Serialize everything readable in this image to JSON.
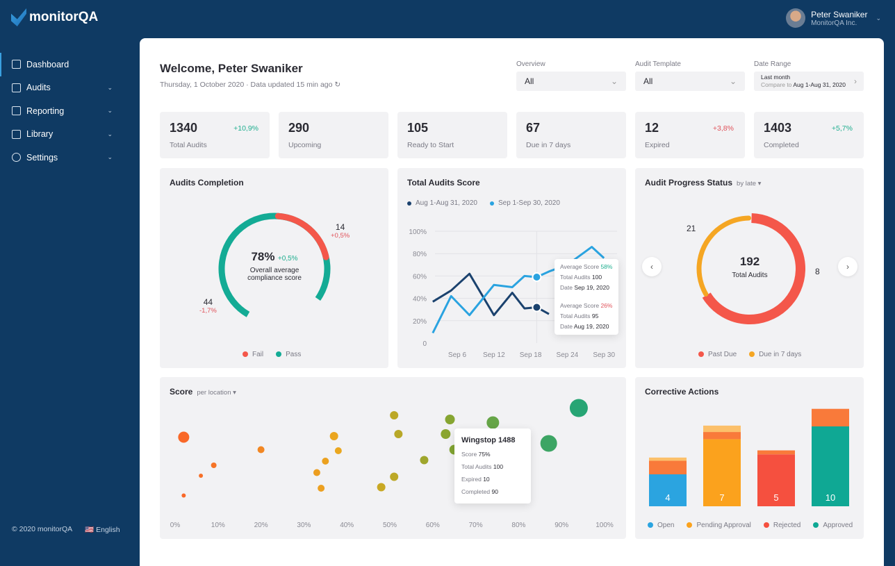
{
  "app": {
    "name": "monitorQA"
  },
  "user": {
    "name": "Peter Swaniker",
    "company": "MonitorQA Inc."
  },
  "sidebar": {
    "items": [
      {
        "label": "Dashboard",
        "icon": "grid-icon"
      },
      {
        "label": "Audits",
        "icon": "audit-icon"
      },
      {
        "label": "Reporting",
        "icon": "report-icon"
      },
      {
        "label": "Library",
        "icon": "folder-icon"
      },
      {
        "label": "Settings",
        "icon": "gear-icon"
      }
    ],
    "footer": {
      "copyright": "© 2020 monitorQA",
      "language": "English"
    }
  },
  "header": {
    "title": "Welcome, Peter Swaniker",
    "subtitle": "Thursday, 1 October 2020 · Data updated 15 min ago"
  },
  "filters": {
    "overview": {
      "label": "Overview",
      "value": "All"
    },
    "template": {
      "label": "Audit Template",
      "value": "All"
    },
    "date": {
      "label": "Date Range",
      "value": "Last month",
      "compare_prefix": "Compare to",
      "compare": "Aug 1-Aug 31, 2020"
    }
  },
  "stats": [
    {
      "value": "1340",
      "label": "Total Audits",
      "delta": "+10,9%",
      "color": "#1fae8f"
    },
    {
      "value": "290",
      "label": "Upcoming",
      "delta": ""
    },
    {
      "value": "105",
      "label": "Ready to Start",
      "delta": ""
    },
    {
      "value": "67",
      "label": "Due in 7 days",
      "delta": ""
    },
    {
      "value": "12",
      "label": "Expired",
      "delta": "+3,8%",
      "color": "#e0525a"
    },
    {
      "value": "1403",
      "label": "Completed",
      "delta": "+5,7%",
      "color": "#1fae8f"
    }
  ],
  "completion": {
    "title": "Audits Completion",
    "percent": "78%",
    "percent_delta": "+0,5%",
    "caption": "Overall average compliance score",
    "fail": {
      "value": "14",
      "delta": "+0,5%"
    },
    "pass": {
      "value": "44",
      "delta": "-1,7%"
    },
    "legend": [
      "Fail",
      "Pass"
    ],
    "colors": {
      "fail": "#f4574a",
      "pass": "#14ab95"
    },
    "pass_fraction": 0.78
  },
  "score_chart": {
    "title": "Total Audits Score",
    "legend": [
      "Aug 1-Aug 31, 2020",
      "Sep 1-Sep 30, 2020"
    ],
    "chart_data": {
      "type": "line",
      "yticks": [
        "100%",
        "80%",
        "60%",
        "40%",
        "20%",
        "0"
      ],
      "xticks": [
        "Sep 6",
        "Sep 12",
        "Sep 18",
        "Sep 24",
        "Sep 30"
      ],
      "ylim": [
        0,
        100
      ],
      "series": [
        {
          "name": "Aug 1-Aug 31, 2020",
          "color": "#1b426e",
          "x": [
            2,
            5,
            8,
            12,
            15,
            17,
            19,
            21
          ],
          "y": [
            37,
            47,
            62,
            25,
            45,
            31,
            32,
            26
          ]
        },
        {
          "name": "Sep 1-Sep 30, 2020",
          "color": "#2aa3e0",
          "x": [
            2,
            5,
            8,
            12,
            15,
            17,
            19,
            21,
            24,
            28,
            30
          ],
          "y": [
            9,
            42,
            25,
            52,
            50,
            60,
            59,
            64,
            70,
            86,
            76
          ]
        }
      ]
    },
    "tooltip": [
      {
        "k1": "Average Score",
        "v1": "58%",
        "k2": "Total Audits",
        "v2": "100",
        "k3": "Date",
        "v3": "Sep 19, 2020",
        "color": "#1fae8f"
      },
      {
        "k1": "Average Score",
        "v1": "26%",
        "k2": "Total Audits",
        "v2": "95",
        "k3": "Date",
        "v3": "Aug 19, 2020",
        "color": "#e0525a"
      }
    ]
  },
  "progress": {
    "title": "Audit Progress Status",
    "filter": "by late",
    "total": "192",
    "total_label": "Total Audits",
    "left_value": "21",
    "right_value": "8",
    "legend": [
      "Past Due",
      "Due in 7 days"
    ],
    "colors": {
      "past": "#f4574a",
      "due": "#f5a623"
    },
    "due_fraction": 0.33
  },
  "scatter": {
    "title": "Score",
    "filter": "per location",
    "chart_data": {
      "type": "scatter",
      "xticks": [
        "0%",
        "10%",
        "20%",
        "30%",
        "40%",
        "50%",
        "60%",
        "70%",
        "80%",
        "90%",
        "100%"
      ],
      "xlim": [
        0,
        100
      ],
      "points": [
        [
          2,
          67,
          8
        ],
        [
          6,
          30,
          3
        ],
        [
          9,
          40,
          4
        ],
        [
          2,
          11,
          3
        ],
        [
          20,
          55,
          5
        ],
        [
          37,
          68,
          6
        ],
        [
          38,
          54,
          5
        ],
        [
          35,
          44,
          5
        ],
        [
          33,
          33,
          5
        ],
        [
          34,
          18,
          5
        ],
        [
          51,
          88,
          6
        ],
        [
          52,
          70,
          6
        ],
        [
          51,
          29,
          6
        ],
        [
          48,
          19,
          6
        ],
        [
          58,
          45,
          6
        ],
        [
          64,
          84,
          7
        ],
        [
          63,
          70,
          7
        ],
        [
          65,
          55,
          7
        ],
        [
          74,
          81,
          9
        ],
        [
          87,
          61,
          12
        ],
        [
          94,
          95,
          13
        ]
      ]
    },
    "tooltip": {
      "title": "Wingstop 1488",
      "rows": [
        [
          "Score",
          "75%"
        ],
        [
          "Total Audits",
          "100"
        ],
        [
          "Expired",
          "10"
        ],
        [
          "Completed",
          "90"
        ]
      ]
    }
  },
  "corrective": {
    "title": "Corrective Actions",
    "chart_data": {
      "type": "bar",
      "categories": [
        "Open",
        "Pending Approval",
        "Rejected",
        "Approved"
      ],
      "values": [
        4,
        7,
        5,
        10
      ],
      "colors": [
        "#2ba4e0",
        "#fba21d",
        "#f5503f",
        "#0fa894"
      ],
      "stack_extra": [
        [
          [
            "#f97a3a",
            1.7
          ],
          [
            "#fcc06a",
            0.4
          ]
        ],
        [
          [
            "#f97a3a",
            0.9
          ],
          [
            "#fcc06a",
            0.8
          ]
        ],
        [
          [
            "#f97a3a",
            0.5
          ]
        ],
        [
          [
            "#f97a3a",
            2.2
          ]
        ]
      ]
    }
  }
}
